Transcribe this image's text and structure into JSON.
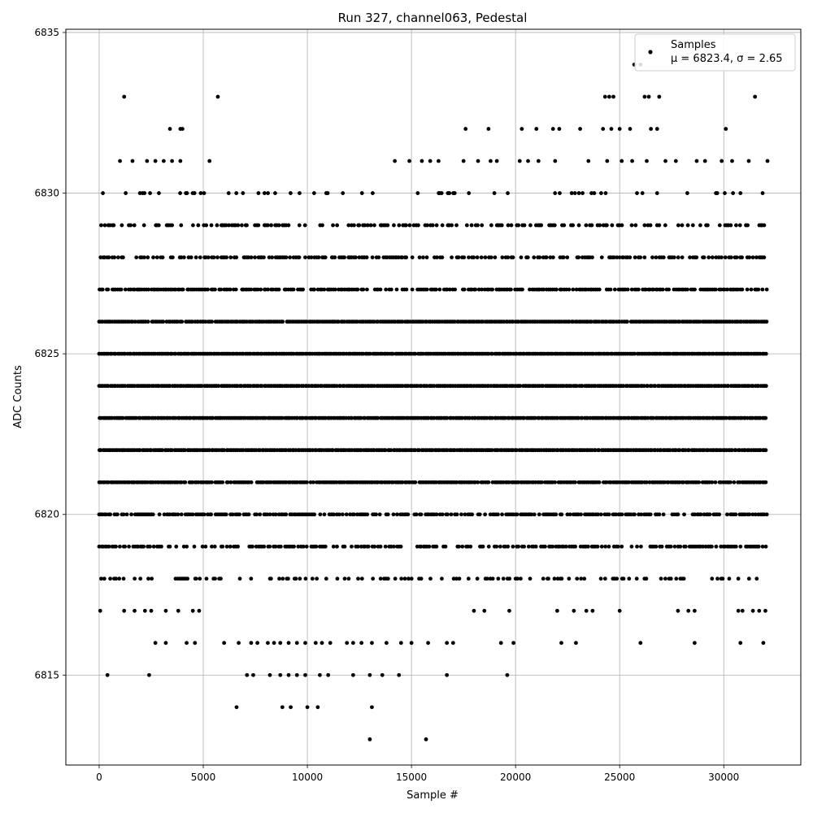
{
  "chart_data": {
    "type": "scatter",
    "title": "Run 327, channel063, Pedestal",
    "xlabel": "Sample #",
    "ylabel": "ADC Counts",
    "xlim": [
      -1600,
      33700
    ],
    "ylim": [
      6812.2,
      6835.1
    ],
    "xticks": [
      0,
      5000,
      10000,
      15000,
      20000,
      25000,
      30000
    ],
    "yticks": [
      6815,
      6820,
      6825,
      6830,
      6835
    ],
    "grid": true,
    "legend": {
      "placement": "top-right",
      "label": "Samples",
      "stats": "μ = 6823.4, σ = 2.65"
    },
    "series": [
      {
        "name": "Samples",
        "color": "#000000",
        "marker": "circle",
        "sample_range": [
          0,
          32100
        ],
        "mean": 6823.4,
        "sigma": 2.65,
        "level_densities": [
          {
            "y": 6819,
            "density": 0.55
          },
          {
            "y": 6820,
            "density": 0.75
          },
          {
            "y": 6821,
            "density": 0.95
          },
          {
            "y": 6822,
            "density": 1.0
          },
          {
            "y": 6823,
            "density": 1.0
          },
          {
            "y": 6824,
            "density": 1.0
          },
          {
            "y": 6825,
            "density": 1.0
          },
          {
            "y": 6826,
            "density": 0.95
          },
          {
            "y": 6827,
            "density": 0.75
          },
          {
            "y": 6828,
            "density": 0.55
          },
          {
            "y": 6829,
            "density": 0.4
          },
          {
            "y": 6830,
            "density": 0.18
          },
          {
            "y": 6818,
            "density": 0.3
          }
        ],
        "sparse_points": [
          {
            "x": 1200,
            "y": 6833
          },
          {
            "x": 5700,
            "y": 6833
          },
          {
            "x": 24300,
            "y": 6833
          },
          {
            "x": 24500,
            "y": 6833
          },
          {
            "x": 24700,
            "y": 6833
          },
          {
            "x": 26200,
            "y": 6833
          },
          {
            "x": 26400,
            "y": 6833
          },
          {
            "x": 26900,
            "y": 6833
          },
          {
            "x": 31500,
            "y": 6833
          },
          {
            "x": 25700,
            "y": 6834
          },
          {
            "x": 26000,
            "y": 6834
          },
          {
            "x": 3400,
            "y": 6832
          },
          {
            "x": 3900,
            "y": 6832
          },
          {
            "x": 4000,
            "y": 6832
          },
          {
            "x": 17600,
            "y": 6832
          },
          {
            "x": 18700,
            "y": 6832
          },
          {
            "x": 20300,
            "y": 6832
          },
          {
            "x": 21000,
            "y": 6832
          },
          {
            "x": 21800,
            "y": 6832
          },
          {
            "x": 22100,
            "y": 6832
          },
          {
            "x": 23100,
            "y": 6832
          },
          {
            "x": 24200,
            "y": 6832
          },
          {
            "x": 24600,
            "y": 6832
          },
          {
            "x": 25000,
            "y": 6832
          },
          {
            "x": 25500,
            "y": 6832
          },
          {
            "x": 26500,
            "y": 6832
          },
          {
            "x": 26800,
            "y": 6832
          },
          {
            "x": 30100,
            "y": 6832
          },
          {
            "x": 1000,
            "y": 6831
          },
          {
            "x": 1600,
            "y": 6831
          },
          {
            "x": 2300,
            "y": 6831
          },
          {
            "x": 2700,
            "y": 6831
          },
          {
            "x": 3100,
            "y": 6831
          },
          {
            "x": 3500,
            "y": 6831
          },
          {
            "x": 3900,
            "y": 6831
          },
          {
            "x": 5300,
            "y": 6831
          },
          {
            "x": 14200,
            "y": 6831
          },
          {
            "x": 14900,
            "y": 6831
          },
          {
            "x": 15500,
            "y": 6831
          },
          {
            "x": 15900,
            "y": 6831
          },
          {
            "x": 16300,
            "y": 6831
          },
          {
            "x": 17500,
            "y": 6831
          },
          {
            "x": 18200,
            "y": 6831
          },
          {
            "x": 18800,
            "y": 6831
          },
          {
            "x": 19100,
            "y": 6831
          },
          {
            "x": 20200,
            "y": 6831
          },
          {
            "x": 20600,
            "y": 6831
          },
          {
            "x": 21100,
            "y": 6831
          },
          {
            "x": 21900,
            "y": 6831
          },
          {
            "x": 23500,
            "y": 6831
          },
          {
            "x": 24400,
            "y": 6831
          },
          {
            "x": 25100,
            "y": 6831
          },
          {
            "x": 25600,
            "y": 6831
          },
          {
            "x": 26300,
            "y": 6831
          },
          {
            "x": 27200,
            "y": 6831
          },
          {
            "x": 27700,
            "y": 6831
          },
          {
            "x": 28700,
            "y": 6831
          },
          {
            "x": 29100,
            "y": 6831
          },
          {
            "x": 29900,
            "y": 6831
          },
          {
            "x": 30400,
            "y": 6831
          },
          {
            "x": 31200,
            "y": 6831
          },
          {
            "x": 32100,
            "y": 6831
          },
          {
            "x": 18000,
            "y": 6817
          },
          {
            "x": 18500,
            "y": 6817
          },
          {
            "x": 19700,
            "y": 6817
          },
          {
            "x": 22000,
            "y": 6817
          },
          {
            "x": 22800,
            "y": 6817
          },
          {
            "x": 23400,
            "y": 6817
          },
          {
            "x": 23700,
            "y": 6817
          },
          {
            "x": 25000,
            "y": 6817
          },
          {
            "x": 27800,
            "y": 6817
          },
          {
            "x": 28300,
            "y": 6817
          },
          {
            "x": 28600,
            "y": 6817
          },
          {
            "x": 30700,
            "y": 6817
          },
          {
            "x": 30900,
            "y": 6817
          },
          {
            "x": 31400,
            "y": 6817
          },
          {
            "x": 31700,
            "y": 6817
          },
          {
            "x": 32000,
            "y": 6817
          },
          {
            "x": 1200,
            "y": 6817
          },
          {
            "x": 1700,
            "y": 6817
          },
          {
            "x": 2200,
            "y": 6817
          },
          {
            "x": 2500,
            "y": 6817
          },
          {
            "x": 3200,
            "y": 6817
          },
          {
            "x": 3800,
            "y": 6817
          },
          {
            "x": 4500,
            "y": 6817
          },
          {
            "x": 4800,
            "y": 6817
          },
          {
            "x": 50,
            "y": 6817
          },
          {
            "x": 2700,
            "y": 6816
          },
          {
            "x": 3200,
            "y": 6816
          },
          {
            "x": 4200,
            "y": 6816
          },
          {
            "x": 4600,
            "y": 6816
          },
          {
            "x": 6000,
            "y": 6816
          },
          {
            "x": 6700,
            "y": 6816
          },
          {
            "x": 7300,
            "y": 6816
          },
          {
            "x": 7600,
            "y": 6816
          },
          {
            "x": 8100,
            "y": 6816
          },
          {
            "x": 8400,
            "y": 6816
          },
          {
            "x": 8700,
            "y": 6816
          },
          {
            "x": 9100,
            "y": 6816
          },
          {
            "x": 9500,
            "y": 6816
          },
          {
            "x": 9900,
            "y": 6816
          },
          {
            "x": 10400,
            "y": 6816
          },
          {
            "x": 10700,
            "y": 6816
          },
          {
            "x": 11100,
            "y": 6816
          },
          {
            "x": 11900,
            "y": 6816
          },
          {
            "x": 12200,
            "y": 6816
          },
          {
            "x": 12600,
            "y": 6816
          },
          {
            "x": 13100,
            "y": 6816
          },
          {
            "x": 13800,
            "y": 6816
          },
          {
            "x": 14500,
            "y": 6816
          },
          {
            "x": 15000,
            "y": 6816
          },
          {
            "x": 15800,
            "y": 6816
          },
          {
            "x": 16700,
            "y": 6816
          },
          {
            "x": 17000,
            "y": 6816
          },
          {
            "x": 19300,
            "y": 6816
          },
          {
            "x": 19900,
            "y": 6816
          },
          {
            "x": 22200,
            "y": 6816
          },
          {
            "x": 22900,
            "y": 6816
          },
          {
            "x": 26000,
            "y": 6816
          },
          {
            "x": 28600,
            "y": 6816
          },
          {
            "x": 30800,
            "y": 6816
          },
          {
            "x": 31900,
            "y": 6816
          },
          {
            "x": 400,
            "y": 6815
          },
          {
            "x": 2400,
            "y": 6815
          },
          {
            "x": 7100,
            "y": 6815
          },
          {
            "x": 7400,
            "y": 6815
          },
          {
            "x": 8200,
            "y": 6815
          },
          {
            "x": 8700,
            "y": 6815
          },
          {
            "x": 9100,
            "y": 6815
          },
          {
            "x": 9500,
            "y": 6815
          },
          {
            "x": 9900,
            "y": 6815
          },
          {
            "x": 10600,
            "y": 6815
          },
          {
            "x": 11000,
            "y": 6815
          },
          {
            "x": 12200,
            "y": 6815
          },
          {
            "x": 13000,
            "y": 6815
          },
          {
            "x": 13600,
            "y": 6815
          },
          {
            "x": 14400,
            "y": 6815
          },
          {
            "x": 16700,
            "y": 6815
          },
          {
            "x": 19600,
            "y": 6815
          },
          {
            "x": 6600,
            "y": 6814
          },
          {
            "x": 8800,
            "y": 6814
          },
          {
            "x": 9200,
            "y": 6814
          },
          {
            "x": 10000,
            "y": 6814
          },
          {
            "x": 10500,
            "y": 6814
          },
          {
            "x": 13100,
            "y": 6814
          },
          {
            "x": 13000,
            "y": 6813
          },
          {
            "x": 15700,
            "y": 6813
          }
        ]
      }
    ]
  }
}
